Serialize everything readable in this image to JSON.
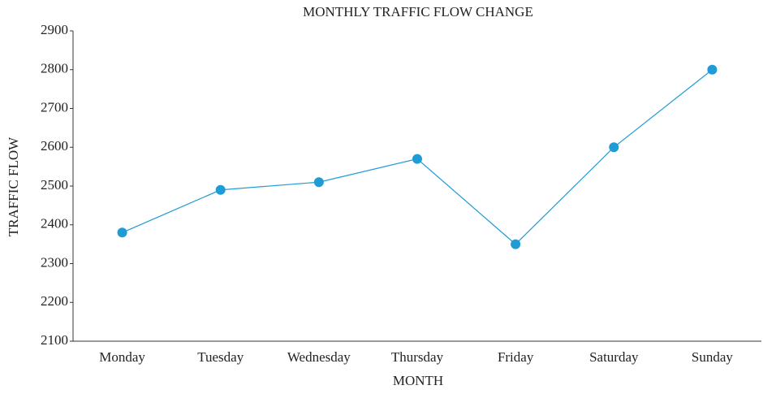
{
  "chart_data": {
    "type": "line",
    "title": "MONTHLY TRAFFIC FLOW CHANGE",
    "x_label": "MONTH",
    "y_label": "TRAFFIC FLOW",
    "categories": [
      "Monday",
      "Tuesday",
      "Wednesday",
      "Thursday",
      "Friday",
      "Saturday",
      "Sunday"
    ],
    "series": [
      {
        "name": "Traffic flow",
        "color": "#1f9bd6",
        "values": [
          2380,
          2490,
          2510,
          2570,
          2350,
          2600,
          2800
        ]
      }
    ],
    "ylim": [
      2100,
      2900
    ],
    "yticks": [
      2100,
      2200,
      2300,
      2400,
      2500,
      2600,
      2700,
      2800,
      2900
    ],
    "grid": false
  }
}
